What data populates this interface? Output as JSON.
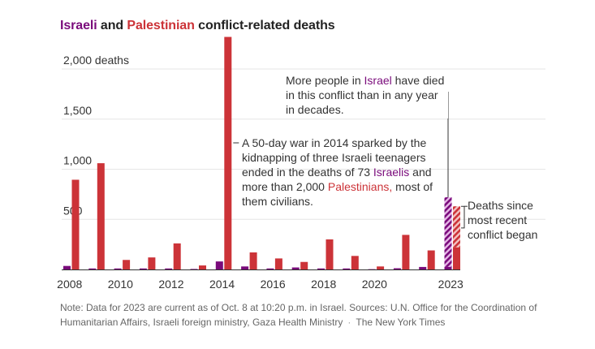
{
  "title": {
    "part1": "Israeli",
    "part2": " and ",
    "part3": "Palestinian",
    "part4": " conflict-related deaths"
  },
  "colors": {
    "israeli": "#7a0b7b",
    "palestinian": "#cc3338",
    "israeli_hatch_light": "#e7b7e8",
    "palestinian_hatch_light": "#f3c3c3",
    "gridline": "#e6e6e6",
    "axis": "#333333"
  },
  "chart_data": {
    "type": "bar",
    "title": "Israeli and Palestinian conflict-related deaths",
    "xlabel": "",
    "ylabel": "deaths",
    "ylim": [
      0,
      2400
    ],
    "grid": true,
    "yticks": [
      {
        "value": 500,
        "label": "500"
      },
      {
        "value": 1000,
        "label": "1,000"
      },
      {
        "value": 1500,
        "label": "1,500"
      },
      {
        "value": 2000,
        "label": "2,000 deaths"
      }
    ],
    "categories": [
      "2008",
      "2009",
      "2010",
      "2011",
      "2012",
      "2013",
      "2014",
      "2015",
      "2016",
      "2017",
      "2018",
      "2019",
      "2020",
      "2021",
      "2022",
      "2023"
    ],
    "xtick_labels": [
      "2008",
      "2010",
      "2012",
      "2014",
      "2016",
      "2018",
      "2020",
      "2023"
    ],
    "series": [
      {
        "name": "Israeli",
        "values": [
          35,
          10,
          10,
          10,
          10,
          5,
          80,
          30,
          10,
          20,
          10,
          10,
          3,
          12,
          25,
          25
        ],
        "recent_conflict_2023": 695
      },
      {
        "name": "Palestinian",
        "values": [
          895,
          1060,
          95,
          120,
          260,
          40,
          2320,
          170,
          110,
          75,
          300,
          135,
          30,
          345,
          190,
          220
        ],
        "recent_conflict_2023": 410
      }
    ],
    "legend": "inline-title"
  },
  "annotations": {
    "israel": {
      "before": "More people in ",
      "highlight": "Israel",
      "after": " have died in this conflict than in any year in decades."
    },
    "war2014": {
      "text1": "A 50-day war in 2014 sparked by the kidnapping of three Israeli teenagers ended in the deaths of 73 ",
      "israelis": "Israelis",
      "text2": " and more than 2,000 ",
      "palestinians": "Palestinians,",
      "text3": " most of them civilians."
    },
    "since": "Deaths since most recent conflict began"
  },
  "note": {
    "text": "Note: Data for 2023 are current as of Oct. 8 at 10:20 p.m. in Israel. Sources: U.N. Office for the Coordination of Humanitarian Affairs, Israeli foreign ministry, Gaza Health Ministry",
    "separator": "·",
    "credit": "The New York Times"
  }
}
